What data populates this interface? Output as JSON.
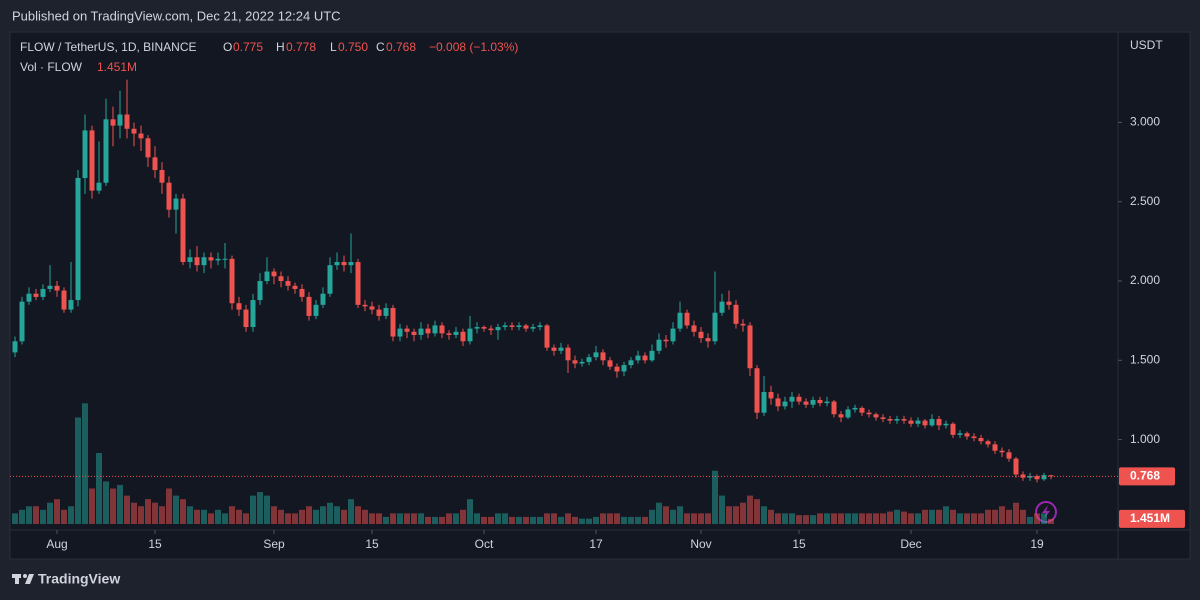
{
  "header": {
    "title": "Published on TradingView.com, Dec 21, 2022 12:24 UTC"
  },
  "footer": {
    "brand": "TradingView"
  },
  "chart_data": {
    "type": "candlestick",
    "legend": {
      "symbol": "FLOW / TetherUS, 1D, BINANCE",
      "open_label": "O",
      "open": "0.775",
      "high_label": "H",
      "high": "0.778",
      "low_label": "L",
      "low": "0.750",
      "close_label": "C",
      "change": "−0.008 (−1.03%)",
      "volume_name": "Vol · FLOW"
    },
    "unit": "USDT",
    "up_color": "#26a69a",
    "down_color": "#ef5350",
    "categories": [
      "Jul 26",
      "Jul 27",
      "Jul 28",
      "Jul 29",
      "Jul 30",
      "Jul 31",
      "Aug 1",
      "Aug 2",
      "Aug 3",
      "Aug 4",
      "Aug 5",
      "Aug 6",
      "Aug 7",
      "Aug 8",
      "Aug 9",
      "Aug 10",
      "Aug 11",
      "Aug 12",
      "Aug 13",
      "Aug 14",
      "Aug 15",
      "Aug 16",
      "Aug 17",
      "Aug 18",
      "Aug 19",
      "Aug 20",
      "Aug 21",
      "Aug 22",
      "Aug 23",
      "Aug 24",
      "Aug 25",
      "Aug 26",
      "Aug 27",
      "Aug 28",
      "Aug 29",
      "Aug 30",
      "Aug 31",
      "Sep 1",
      "Sep 2",
      "Sep 3",
      "Sep 4",
      "Sep 5",
      "Sep 6",
      "Sep 7",
      "Sep 8",
      "Sep 9",
      "Sep 10",
      "Sep 11",
      "Sep 12",
      "Sep 13",
      "Sep 14",
      "Sep 15",
      "Sep 16",
      "Sep 17",
      "Sep 18",
      "Sep 19",
      "Sep 20",
      "Sep 21",
      "Sep 22",
      "Sep 23",
      "Sep 24",
      "Sep 25",
      "Sep 26",
      "Sep 27",
      "Sep 28",
      "Sep 29",
      "Sep 30",
      "Oct 1",
      "Oct 2",
      "Oct 3",
      "Oct 4",
      "Oct 5",
      "Oct 6",
      "Oct 7",
      "Oct 8",
      "Oct 9",
      "Oct 10",
      "Oct 11",
      "Oct 12",
      "Oct 13",
      "Oct 14",
      "Oct 15",
      "Oct 16",
      "Oct 17",
      "Oct 18",
      "Oct 19",
      "Oct 20",
      "Oct 21",
      "Oct 22",
      "Oct 23",
      "Oct 24",
      "Oct 25",
      "Oct 26",
      "Oct 27",
      "Oct 28",
      "Oct 29",
      "Oct 30",
      "Oct 31",
      "Nov 1",
      "Nov 2",
      "Nov 3",
      "Nov 4",
      "Nov 5",
      "Nov 6",
      "Nov 7",
      "Nov 8",
      "Nov 9",
      "Nov 10",
      "Nov 11",
      "Nov 12",
      "Nov 13",
      "Nov 14",
      "Nov 15",
      "Nov 16",
      "Nov 17",
      "Nov 18",
      "Nov 19",
      "Nov 20",
      "Nov 21",
      "Nov 22",
      "Nov 23",
      "Nov 24",
      "Nov 25",
      "Nov 26",
      "Nov 27",
      "Nov 28",
      "Nov 29",
      "Nov 30",
      "Dec 1",
      "Dec 2",
      "Dec 3",
      "Dec 4",
      "Dec 5",
      "Dec 6",
      "Dec 7",
      "Dec 8",
      "Dec 9",
      "Dec 10",
      "Dec 11",
      "Dec 12",
      "Dec 13",
      "Dec 14",
      "Dec 15",
      "Dec 16",
      "Dec 17",
      "Dec 18",
      "Dec 19",
      "Dec 20",
      "Dec 21"
    ],
    "open": [
      1.55,
      1.62,
      1.87,
      1.92,
      1.9,
      1.95,
      1.97,
      1.94,
      1.82,
      1.88,
      2.65,
      2.95,
      2.57,
      2.62,
      3.02,
      2.98,
      3.05,
      2.96,
      2.93,
      2.9,
      2.78,
      2.7,
      2.62,
      2.45,
      2.52,
      2.12,
      2.15,
      2.1,
      2.15,
      2.13,
      2.14,
      2.14,
      1.86,
      1.82,
      1.71,
      1.88,
      2.0,
      2.06,
      2.03,
      2.0,
      1.97,
      1.95,
      1.9,
      1.78,
      1.85,
      1.92,
      2.1,
      2.12,
      2.1,
      2.12,
      1.85,
      1.84,
      1.82,
      1.78,
      1.83,
      1.65,
      1.7,
      1.68,
      1.66,
      1.7,
      1.67,
      1.72,
      1.67,
      1.66,
      1.68,
      1.62,
      1.7,
      1.71,
      1.7,
      1.69,
      1.71,
      1.72,
      1.71,
      1.72,
      1.7,
      1.71,
      1.72,
      1.58,
      1.56,
      1.58,
      1.5,
      1.48,
      1.49,
      1.52,
      1.55,
      1.5,
      1.46,
      1.43,
      1.47,
      1.5,
      1.53,
      1.5,
      1.56,
      1.63,
      1.62,
      1.7,
      1.8,
      1.72,
      1.68,
      1.64,
      1.62,
      1.8,
      1.87,
      1.85,
      1.73,
      1.72,
      1.45,
      1.17,
      1.3,
      1.26,
      1.21,
      1.24,
      1.27,
      1.24,
      1.22,
      1.25,
      1.23,
      1.24,
      1.16,
      1.14,
      1.19,
      1.2,
      1.17,
      1.16,
      1.14,
      1.13,
      1.12,
      1.13,
      1.12,
      1.1,
      1.12,
      1.09,
      1.13,
      1.09,
      1.1,
      1.03,
      1.04,
      1.02,
      1.01,
      0.99,
      0.97,
      0.93,
      0.92,
      0.88,
      0.78,
      0.76,
      0.77,
      0.75,
      0.775
    ],
    "high": [
      1.65,
      1.9,
      1.96,
      1.95,
      1.98,
      2.1,
      2.0,
      1.96,
      2.12,
      2.7,
      3.05,
      2.98,
      2.88,
      3.15,
      3.1,
      3.2,
      3.27,
      3.0,
      2.98,
      2.92,
      2.85,
      2.75,
      2.66,
      2.55,
      2.55,
      2.2,
      2.22,
      2.18,
      2.18,
      2.18,
      2.24,
      2.16,
      1.9,
      1.85,
      1.92,
      2.05,
      2.15,
      2.08,
      2.06,
      2.03,
      1.99,
      1.98,
      1.93,
      1.88,
      1.96,
      2.15,
      2.18,
      2.16,
      2.3,
      2.14,
      1.88,
      1.87,
      1.85,
      1.86,
      1.85,
      1.73,
      1.72,
      1.7,
      1.74,
      1.73,
      1.75,
      1.74,
      1.69,
      1.71,
      1.7,
      1.78,
      1.74,
      1.72,
      1.72,
      1.73,
      1.74,
      1.74,
      1.74,
      1.73,
      1.73,
      1.74,
      1.73,
      1.6,
      1.61,
      1.6,
      1.53,
      1.51,
      1.54,
      1.59,
      1.57,
      1.52,
      1.48,
      1.49,
      1.52,
      1.56,
      1.55,
      1.6,
      1.67,
      1.66,
      1.74,
      1.87,
      1.82,
      1.75,
      1.71,
      1.67,
      2.06,
      1.92,
      1.94,
      1.88,
      1.76,
      1.74,
      1.47,
      1.4,
      1.34,
      1.29,
      1.27,
      1.3,
      1.29,
      1.26,
      1.27,
      1.27,
      1.27,
      1.25,
      1.18,
      1.21,
      1.22,
      1.21,
      1.19,
      1.17,
      1.16,
      1.15,
      1.15,
      1.15,
      1.14,
      1.14,
      1.13,
      1.16,
      1.15,
      1.12,
      1.11,
      1.06,
      1.05,
      1.04,
      1.03,
      1.0,
      0.99,
      0.95,
      0.94,
      0.89,
      0.8,
      0.79,
      0.78,
      0.79,
      0.778
    ],
    "low": [
      1.52,
      1.6,
      1.85,
      1.88,
      1.88,
      1.93,
      1.9,
      1.8,
      1.8,
      1.84,
      2.55,
      2.52,
      2.55,
      2.6,
      2.85,
      2.9,
      2.9,
      2.85,
      2.82,
      2.72,
      2.65,
      2.55,
      2.4,
      2.3,
      2.1,
      2.08,
      2.06,
      2.05,
      2.08,
      2.1,
      2.08,
      1.82,
      1.78,
      1.68,
      1.68,
      1.85,
      1.98,
      1.98,
      1.96,
      1.94,
      1.92,
      1.87,
      1.75,
      1.76,
      1.83,
      1.9,
      2.07,
      2.06,
      2.05,
      1.83,
      1.81,
      1.79,
      1.75,
      1.76,
      1.62,
      1.62,
      1.64,
      1.62,
      1.63,
      1.64,
      1.65,
      1.64,
      1.63,
      1.64,
      1.59,
      1.6,
      1.67,
      1.68,
      1.66,
      1.63,
      1.69,
      1.69,
      1.69,
      1.68,
      1.68,
      1.69,
      1.56,
      1.53,
      1.54,
      1.42,
      1.45,
      1.46,
      1.47,
      1.5,
      1.47,
      1.44,
      1.39,
      1.4,
      1.45,
      1.48,
      1.48,
      1.49,
      1.54,
      1.58,
      1.6,
      1.68,
      1.7,
      1.65,
      1.61,
      1.58,
      1.6,
      1.78,
      1.82,
      1.7,
      1.68,
      1.4,
      1.13,
      1.15,
      1.22,
      1.18,
      1.19,
      1.2,
      1.22,
      1.2,
      1.2,
      1.21,
      1.21,
      1.14,
      1.11,
      1.13,
      1.17,
      1.15,
      1.14,
      1.12,
      1.11,
      1.1,
      1.1,
      1.1,
      1.08,
      1.08,
      1.07,
      1.08,
      1.06,
      1.07,
      1.01,
      1.01,
      1.0,
      0.99,
      0.97,
      0.95,
      0.91,
      0.89,
      0.86,
      0.76,
      0.74,
      0.74,
      0.73,
      0.74,
      0.75
    ],
    "close": [
      1.62,
      1.87,
      1.92,
      1.9,
      1.95,
      1.97,
      1.94,
      1.82,
      1.88,
      2.65,
      2.95,
      2.57,
      2.62,
      3.02,
      2.98,
      3.05,
      2.96,
      2.93,
      2.9,
      2.78,
      2.7,
      2.62,
      2.45,
      2.52,
      2.12,
      2.15,
      2.1,
      2.15,
      2.13,
      2.14,
      2.14,
      1.86,
      1.82,
      1.71,
      1.88,
      2.0,
      2.06,
      2.03,
      2.0,
      1.97,
      1.95,
      1.9,
      1.78,
      1.85,
      1.92,
      2.1,
      2.12,
      2.1,
      2.12,
      1.85,
      1.84,
      1.82,
      1.78,
      1.83,
      1.65,
      1.7,
      1.68,
      1.66,
      1.7,
      1.67,
      1.72,
      1.67,
      1.66,
      1.68,
      1.62,
      1.7,
      1.71,
      1.7,
      1.69,
      1.71,
      1.72,
      1.71,
      1.72,
      1.7,
      1.71,
      1.72,
      1.58,
      1.56,
      1.58,
      1.5,
      1.48,
      1.49,
      1.52,
      1.55,
      1.5,
      1.46,
      1.43,
      1.47,
      1.5,
      1.53,
      1.5,
      1.56,
      1.63,
      1.62,
      1.7,
      1.8,
      1.72,
      1.68,
      1.64,
      1.62,
      1.8,
      1.87,
      1.85,
      1.73,
      1.72,
      1.45,
      1.17,
      1.3,
      1.26,
      1.21,
      1.24,
      1.27,
      1.24,
      1.22,
      1.25,
      1.23,
      1.24,
      1.16,
      1.14,
      1.19,
      1.2,
      1.17,
      1.16,
      1.14,
      1.13,
      1.12,
      1.13,
      1.12,
      1.1,
      1.12,
      1.09,
      1.13,
      1.09,
      1.1,
      1.03,
      1.04,
      1.02,
      1.01,
      0.99,
      0.97,
      0.93,
      0.92,
      0.88,
      0.78,
      0.76,
      0.77,
      0.75,
      0.776,
      0.768
    ],
    "volume": [
      3,
      4,
      5,
      5,
      4,
      6,
      7,
      4,
      5,
      30,
      34,
      10,
      20,
      12,
      10,
      11,
      8,
      6,
      5,
      7,
      6,
      5,
      10,
      8,
      7,
      5,
      4,
      4,
      3,
      4,
      3,
      5,
      4,
      3,
      8,
      9,
      8,
      5,
      4,
      3,
      3,
      4,
      5,
      4,
      5,
      6,
      5,
      4,
      7,
      5,
      4,
      3,
      3,
      2,
      3,
      3,
      3,
      3,
      3,
      2,
      2,
      2,
      3,
      3,
      4,
      7,
      3,
      2,
      2,
      3,
      3,
      2,
      2,
      2,
      2,
      2,
      3,
      3,
      2,
      3,
      2,
      1.5,
      1.5,
      2,
      3,
      3,
      3,
      2,
      2,
      2,
      2,
      4,
      6,
      5,
      4,
      5,
      3,
      3,
      3,
      3,
      15,
      8,
      5,
      5,
      6,
      8,
      7,
      5,
      4,
      3,
      3,
      3,
      2.5,
      2.5,
      2.5,
      3,
      3,
      3,
      3,
      3,
      3,
      3,
      3,
      3,
      3,
      3.5,
      4,
      3.5,
      3,
      3,
      4,
      4,
      4,
      5,
      4,
      3,
      3,
      3,
      3,
      4,
      4,
      5,
      4,
      6,
      4,
      2,
      3,
      3,
      1.451
    ],
    "last_price": {
      "value": 0.768,
      "label": "0.768"
    },
    "last_volume": {
      "value": 1.451,
      "label": "1.451M"
    },
    "ylim": [
      0.43,
      3.52
    ],
    "yticks": [
      {
        "value": 1,
        "label": "1.000"
      },
      {
        "value": 1.5,
        "label": "1.500"
      },
      {
        "value": 2,
        "label": "2.000"
      },
      {
        "value": 2.5,
        "label": "2.500"
      },
      {
        "value": 3,
        "label": "3.000"
      }
    ],
    "y2lim": [
      0,
      40
    ],
    "xticks": [
      {
        "value": "Aug 1",
        "label": "Aug"
      },
      {
        "value": "Aug 15",
        "label": "15"
      },
      {
        "value": "Sep 1",
        "label": "Sep"
      },
      {
        "value": "Sep 15",
        "label": "15"
      },
      {
        "value": "Oct 1",
        "label": "Oct"
      },
      {
        "value": "Oct 17",
        "label": "17"
      },
      {
        "value": "Nov 1",
        "label": "Nov"
      },
      {
        "value": "Nov 15",
        "label": "15"
      },
      {
        "value": "Dec 1",
        "label": "Dec"
      },
      {
        "value": "Dec 19",
        "label": "19"
      }
    ]
  }
}
